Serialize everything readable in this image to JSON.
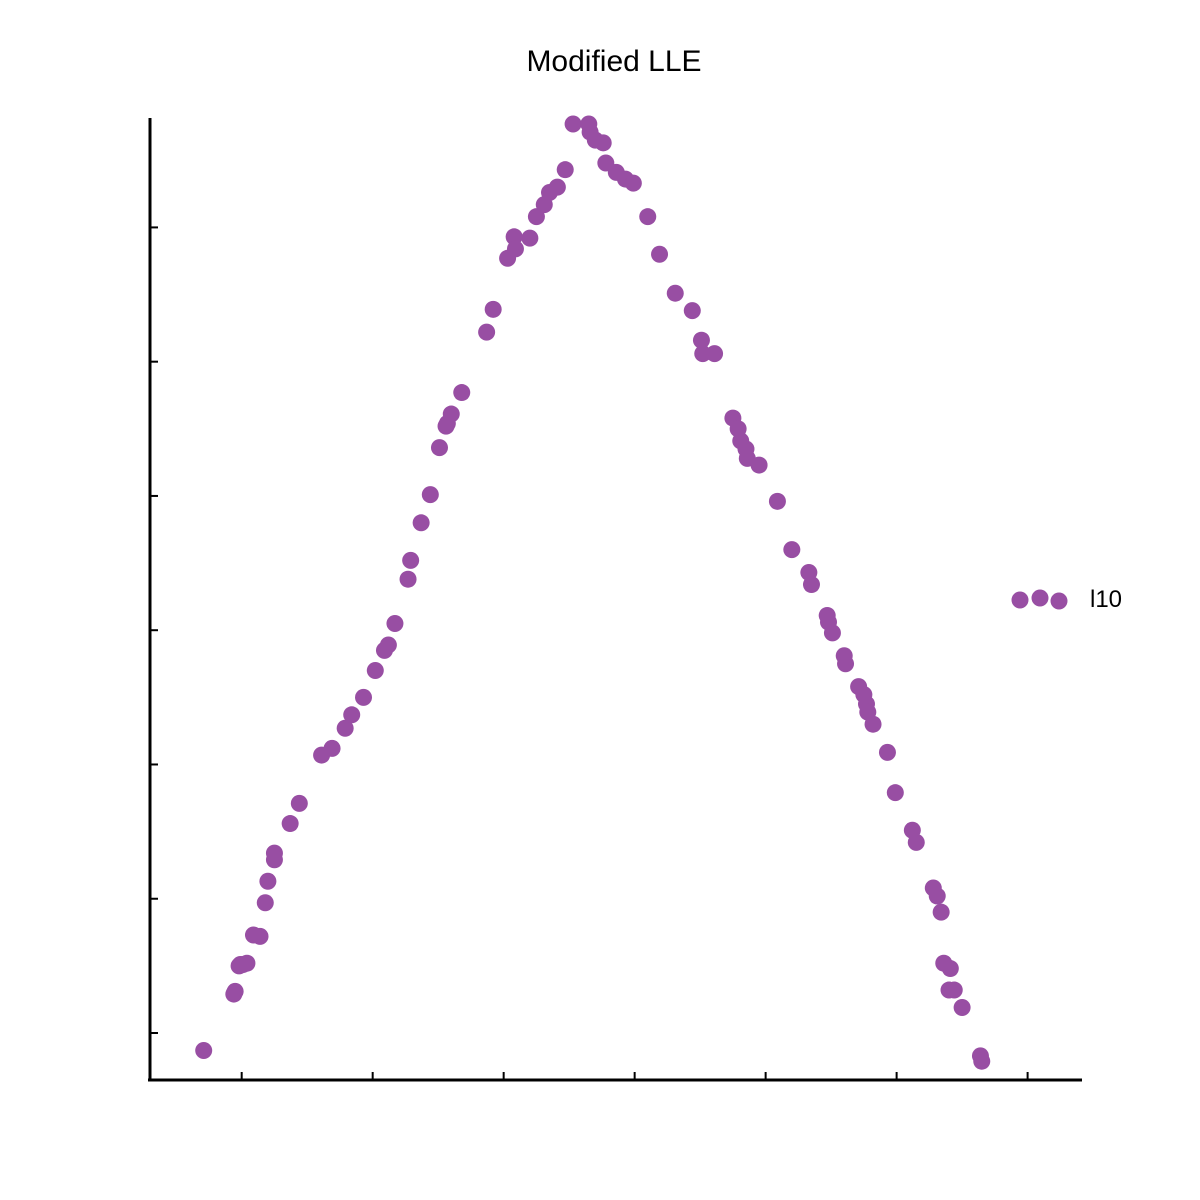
{
  "chart_data": {
    "type": "scatter",
    "title": "Modified LLE",
    "xlabel": "",
    "ylabel": "",
    "xlim": [
      -0.35,
      3.2
    ],
    "ylim": [
      -2.35,
      4.8
    ],
    "xticks": [
      0,
      0.5,
      1.0,
      1.5,
      2.0,
      2.5,
      3.0
    ],
    "yticks": [
      -2.0,
      -1.0,
      0.0,
      1.0,
      2.0,
      3.0,
      4.0
    ],
    "show_tick_labels": false,
    "grid": false,
    "legend": {
      "placement": "right"
    },
    "color": "#984ea3",
    "series": [
      {
        "name": "l10",
        "points": [
          [
            -0.145,
            -2.13
          ],
          [
            -0.03,
            -1.71
          ],
          [
            -0.025,
            -1.69
          ],
          [
            -0.01,
            -1.5
          ],
          [
            -0.005,
            -1.49
          ],
          [
            0.005,
            -1.49
          ],
          [
            0.02,
            -1.48
          ],
          [
            0.045,
            -1.27
          ],
          [
            0.07,
            -1.28
          ],
          [
            0.09,
            -1.03
          ],
          [
            0.1,
            -0.87
          ],
          [
            0.125,
            -0.71
          ],
          [
            0.125,
            -0.66
          ],
          [
            0.185,
            -0.44
          ],
          [
            0.22,
            -0.29
          ],
          [
            0.305,
            0.07
          ],
          [
            0.345,
            0.12
          ],
          [
            0.395,
            0.27
          ],
          [
            0.42,
            0.37
          ],
          [
            0.465,
            0.5
          ],
          [
            0.51,
            0.7
          ],
          [
            0.545,
            0.85
          ],
          [
            0.56,
            0.89
          ],
          [
            0.585,
            1.05
          ],
          [
            0.635,
            1.38
          ],
          [
            0.645,
            1.52
          ],
          [
            0.685,
            1.8
          ],
          [
            0.72,
            2.01
          ],
          [
            0.755,
            2.36
          ],
          [
            0.78,
            2.52
          ],
          [
            0.785,
            2.54
          ],
          [
            0.8,
            2.61
          ],
          [
            0.84,
            2.77
          ],
          [
            0.935,
            3.22
          ],
          [
            0.96,
            3.39
          ],
          [
            1.015,
            3.77
          ],
          [
            1.04,
            3.93
          ],
          [
            1.045,
            3.84
          ],
          [
            1.1,
            3.92
          ],
          [
            1.125,
            4.08
          ],
          [
            1.155,
            4.17
          ],
          [
            1.175,
            4.26
          ],
          [
            1.205,
            4.3
          ],
          [
            1.235,
            4.43
          ],
          [
            1.265,
            4.77
          ],
          [
            1.325,
            4.77
          ],
          [
            1.33,
            4.71
          ],
          [
            1.35,
            4.65
          ],
          [
            1.38,
            4.63
          ],
          [
            1.39,
            4.48
          ],
          [
            1.43,
            4.41
          ],
          [
            1.465,
            4.36
          ],
          [
            1.495,
            4.33
          ],
          [
            1.55,
            4.08
          ],
          [
            1.595,
            3.8
          ],
          [
            1.655,
            3.51
          ],
          [
            1.72,
            3.38
          ],
          [
            1.755,
            3.16
          ],
          [
            1.76,
            3.06
          ],
          [
            1.805,
            3.06
          ],
          [
            1.875,
            2.58
          ],
          [
            1.895,
            2.5
          ],
          [
            1.905,
            2.41
          ],
          [
            1.925,
            2.35
          ],
          [
            1.93,
            2.28
          ],
          [
            1.975,
            2.23
          ],
          [
            2.045,
            1.96
          ],
          [
            2.1,
            1.6
          ],
          [
            2.165,
            1.43
          ],
          [
            2.175,
            1.34
          ],
          [
            2.235,
            1.11
          ],
          [
            2.24,
            1.06
          ],
          [
            2.255,
            0.98
          ],
          [
            2.3,
            0.81
          ],
          [
            2.305,
            0.75
          ],
          [
            2.355,
            0.58
          ],
          [
            2.375,
            0.52
          ],
          [
            2.385,
            0.45
          ],
          [
            2.39,
            0.39
          ],
          [
            2.41,
            0.3
          ],
          [
            2.465,
            0.09
          ],
          [
            2.495,
            -0.21
          ],
          [
            2.56,
            -0.49
          ],
          [
            2.575,
            -0.58
          ],
          [
            2.64,
            -0.92
          ],
          [
            2.655,
            -0.98
          ],
          [
            2.67,
            -1.1
          ],
          [
            2.68,
            -1.48
          ],
          [
            2.705,
            -1.52
          ],
          [
            2.7,
            -1.68
          ],
          [
            2.72,
            -1.68
          ],
          [
            2.75,
            -1.81
          ],
          [
            2.82,
            -2.17
          ],
          [
            2.825,
            -2.21
          ]
        ]
      }
    ]
  }
}
